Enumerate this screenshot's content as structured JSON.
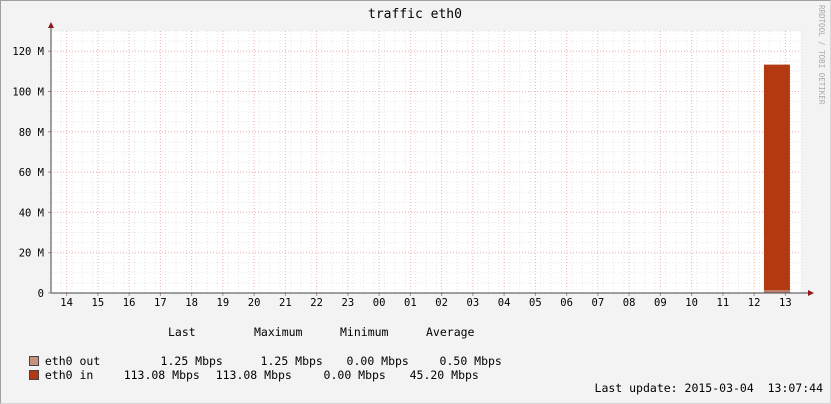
{
  "chart_data": {
    "type": "area",
    "title": "traffic  eth0",
    "watermark": "RRDTOOL / TOBI OETIKER",
    "ylim": [
      0,
      130
    ],
    "y_ticks": [
      {
        "value": 0,
        "label": "0"
      },
      {
        "value": 20,
        "label": "20 M"
      },
      {
        "value": 40,
        "label": "40 M"
      },
      {
        "value": 60,
        "label": "60 M"
      },
      {
        "value": 80,
        "label": "80 M"
      },
      {
        "value": 100,
        "label": "100 M"
      },
      {
        "value": 120,
        "label": "120 M"
      }
    ],
    "x_ticks": [
      "14",
      "15",
      "16",
      "17",
      "18",
      "19",
      "20",
      "21",
      "22",
      "23",
      "00",
      "01",
      "02",
      "03",
      "04",
      "05",
      "06",
      "07",
      "08",
      "09",
      "10",
      "11",
      "12",
      "13"
    ],
    "xlim": [
      13.5,
      37.5
    ],
    "grid": true,
    "series": [
      {
        "name": "eth0 in",
        "color": "#b33a10",
        "points": [
          {
            "x": 36.33,
            "y": 113.08
          },
          {
            "x": 37.13,
            "y": 113.08
          }
        ]
      },
      {
        "name": "eth0 out",
        "color": "#c08070",
        "points": [
          {
            "x": 36.33,
            "y": 1.25
          },
          {
            "x": 37.13,
            "y": 1.25
          }
        ]
      }
    ]
  },
  "legend": {
    "headers": [
      "Last",
      "Maximum",
      "Minimum",
      "Average"
    ],
    "rows": [
      {
        "name": "eth0 out",
        "color": "#c89080",
        "last": "1.25 Mbps",
        "max": "1.25 Mbps",
        "min": "0.00 Mbps",
        "avg": "0.50 Mbps"
      },
      {
        "name": "eth0 in",
        "color": "#b33a10",
        "last": "113.08 Mbps",
        "max": "113.08 Mbps",
        "min": "0.00 Mbps",
        "avg": "45.20 Mbps"
      }
    ]
  },
  "footer": {
    "last_update": "Last update: 2015-03-04  13:07:44"
  }
}
